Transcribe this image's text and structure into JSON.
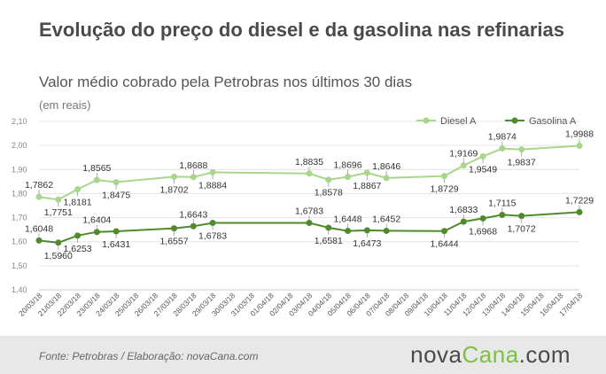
{
  "header": {
    "title": "Evolução do preço do diesel e da gasolina nas refinarias",
    "subtitle": "Valor médio cobrado pela Petrobras nos últimos 30 dias",
    "unit": "(em reais)"
  },
  "footer": {
    "source": "Fonte:  Petrobras  / Elaboração:  novaCana.com",
    "logo_main": "nova",
    "logo_accent": "Cana",
    "logo_suffix": ".com"
  },
  "colors": {
    "diesel": "#a8d68c",
    "gasolina": "#4f8a2b",
    "grid": "#e4e4e4"
  },
  "chart_data": {
    "type": "line",
    "title": "Evolução do preço do diesel e da gasolina nas refinarias",
    "subtitle": "Valor médio cobrado pela Petrobras nos últimos 30 dias",
    "ylabel": "(em reais)",
    "ylim": [
      1.4,
      2.1
    ],
    "yticks": [
      "1,40",
      "1,50",
      "1,60",
      "1,70",
      "1,80",
      "1,90",
      "2,00",
      "2,10"
    ],
    "grid": true,
    "legend_position": "top-right",
    "categories": [
      "20/03/18",
      "21/03/18",
      "22/03/18",
      "23/03/18",
      "24/03/18",
      "25/03/18",
      "26/03/18",
      "27/03/18",
      "28/03/18",
      "29/03/18",
      "30/03/18",
      "31/03/18",
      "01/04/18",
      "02/04/18",
      "03/04/18",
      "04/04/18",
      "05/04/18",
      "06/04/18",
      "07/04/18",
      "08/04/18",
      "09/04/18",
      "10/04/18",
      "11/04/18",
      "12/04/18",
      "13/04/18",
      "14/04/18",
      "15/04/18",
      "16/04/18",
      "17/04/18"
    ],
    "series": [
      {
        "name": "Diesel A",
        "points": [
          {
            "i": 0,
            "v": 1.7862,
            "label": "1,7862",
            "pos": "above"
          },
          {
            "i": 1,
            "v": 1.7751,
            "label": "1,7751",
            "pos": "below"
          },
          {
            "i": 2,
            "v": 1.8181,
            "label": "1,8181",
            "pos": "below"
          },
          {
            "i": 3,
            "v": 1.8565,
            "label": "1,8565",
            "pos": "above"
          },
          {
            "i": 4,
            "v": 1.8475,
            "label": "1,8475",
            "pos": "below"
          },
          {
            "i": 7,
            "v": 1.8702,
            "label": "1,8702",
            "pos": "below"
          },
          {
            "i": 8,
            "v": 1.8688,
            "label": "1,8688",
            "pos": "above"
          },
          {
            "i": 9,
            "v": 1.8884,
            "label": "1,8884",
            "pos": "below"
          },
          {
            "i": 14,
            "v": 1.8835,
            "label": "1,8835",
            "pos": "above"
          },
          {
            "i": 15,
            "v": 1.8578,
            "label": "1,8578",
            "pos": "below"
          },
          {
            "i": 16,
            "v": 1.8696,
            "label": "1,8696",
            "pos": "above"
          },
          {
            "i": 17,
            "v": 1.8867,
            "label": "1,8867",
            "pos": "below"
          },
          {
            "i": 18,
            "v": 1.8646,
            "label": "1,8646",
            "pos": "above"
          },
          {
            "i": 21,
            "v": 1.8729,
            "label": "1,8729",
            "pos": "below"
          },
          {
            "i": 22,
            "v": 1.9169,
            "label": "1,9169",
            "pos": "above"
          },
          {
            "i": 23,
            "v": 1.9549,
            "label": "1,9549",
            "pos": "below"
          },
          {
            "i": 24,
            "v": 1.9874,
            "label": "1,9874",
            "pos": "above"
          },
          {
            "i": 25,
            "v": 1.9837,
            "label": "1,9837",
            "pos": "below"
          },
          {
            "i": 28,
            "v": 1.9988,
            "label": "1,9988",
            "pos": "above"
          }
        ]
      },
      {
        "name": "Gasolina A",
        "points": [
          {
            "i": 0,
            "v": 1.6048,
            "label": "1,6048",
            "pos": "above"
          },
          {
            "i": 1,
            "v": 1.596,
            "label": "1,5960",
            "pos": "below"
          },
          {
            "i": 2,
            "v": 1.6253,
            "label": "1,6253",
            "pos": "below"
          },
          {
            "i": 3,
            "v": 1.6404,
            "label": "1,6404",
            "pos": "above"
          },
          {
            "i": 4,
            "v": 1.6431,
            "label": "1,6431",
            "pos": "below"
          },
          {
            "i": 7,
            "v": 1.6557,
            "label": "1,6557",
            "pos": "below"
          },
          {
            "i": 8,
            "v": 1.6643,
            "label": "1,6643",
            "pos": "above"
          },
          {
            "i": 9,
            "v": 1.6783,
            "label": "1,6783",
            "pos": "below"
          },
          {
            "i": 14,
            "v": 1.6783,
            "label": "1,6783",
            "pos": "above"
          },
          {
            "i": 15,
            "v": 1.6581,
            "label": "1,6581",
            "pos": "below"
          },
          {
            "i": 16,
            "v": 1.6448,
            "label": "1,6448",
            "pos": "above"
          },
          {
            "i": 17,
            "v": 1.6473,
            "label": "1,6473",
            "pos": "below"
          },
          {
            "i": 18,
            "v": 1.6452,
            "label": "1,6452",
            "pos": "above"
          },
          {
            "i": 21,
            "v": 1.6444,
            "label": "1,6444",
            "pos": "below"
          },
          {
            "i": 22,
            "v": 1.6833,
            "label": "1,6833",
            "pos": "above"
          },
          {
            "i": 23,
            "v": 1.6968,
            "label": "1,6968",
            "pos": "below"
          },
          {
            "i": 24,
            "v": 1.7115,
            "label": "1,7115",
            "pos": "above"
          },
          {
            "i": 25,
            "v": 1.7072,
            "label": "1,7072",
            "pos": "below"
          },
          {
            "i": 28,
            "v": 1.7229,
            "label": "1,7229",
            "pos": "above"
          }
        ]
      }
    ]
  }
}
